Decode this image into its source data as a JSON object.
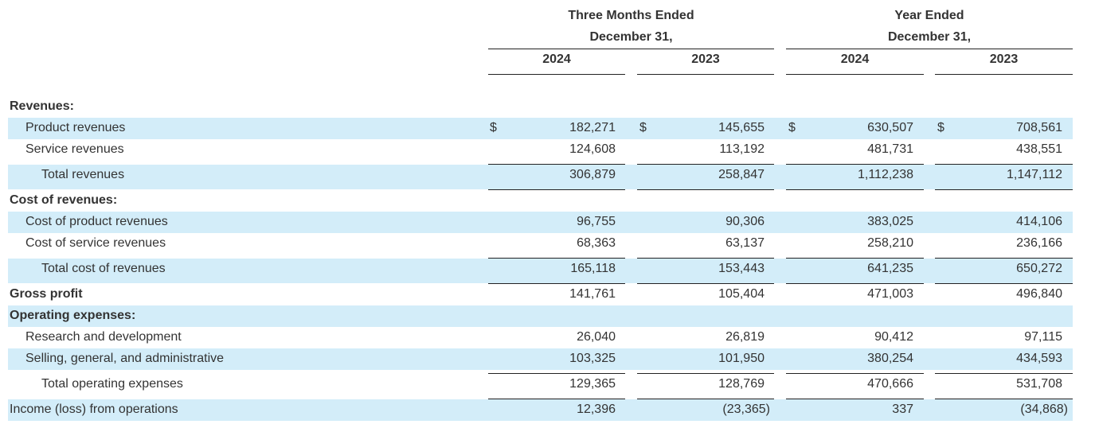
{
  "header": {
    "groups": [
      {
        "line1": "Three Months Ended",
        "line2": "December 31,",
        "years": [
          "2024",
          "2023"
        ]
      },
      {
        "line1": "Year Ended",
        "line2": "December 31,",
        "years": [
          "2024",
          "2023"
        ]
      }
    ]
  },
  "rows": [
    {
      "label": "Revenues:"
    },
    {
      "label": "Product revenues",
      "currency": "$",
      "values": [
        "182,271",
        "145,655",
        "630,507",
        "708,561"
      ]
    },
    {
      "label": "Service revenues",
      "values": [
        "124,608",
        "113,192",
        "481,731",
        "438,551"
      ]
    },
    {
      "label": "Total revenues",
      "values": [
        "306,879",
        "258,847",
        "1,112,238",
        "1,147,112"
      ]
    },
    {
      "label": "Cost of revenues:"
    },
    {
      "label": "Cost of product revenues",
      "values": [
        "96,755",
        "90,306",
        "383,025",
        "414,106"
      ]
    },
    {
      "label": "Cost of service revenues",
      "values": [
        "68,363",
        "63,137",
        "258,210",
        "236,166"
      ]
    },
    {
      "label": "Total cost of revenues",
      "values": [
        "165,118",
        "153,443",
        "641,235",
        "650,272"
      ]
    },
    {
      "label": "Gross profit",
      "values": [
        "141,761",
        "105,404",
        "471,003",
        "496,840"
      ]
    },
    {
      "label": "Operating expenses:"
    },
    {
      "label": "Research and development",
      "values": [
        "26,040",
        "26,819",
        "90,412",
        "97,115"
      ]
    },
    {
      "label": "Selling, general, and administrative",
      "values": [
        "103,325",
        "101,950",
        "380,254",
        "434,593"
      ]
    },
    {
      "label": "Total operating expenses",
      "values": [
        "129,365",
        "128,769",
        "470,666",
        "531,708"
      ]
    },
    {
      "label": "Income (loss) from operations",
      "values": [
        "12,396",
        "(23,365)",
        "337",
        "(34,868)"
      ]
    }
  ]
}
